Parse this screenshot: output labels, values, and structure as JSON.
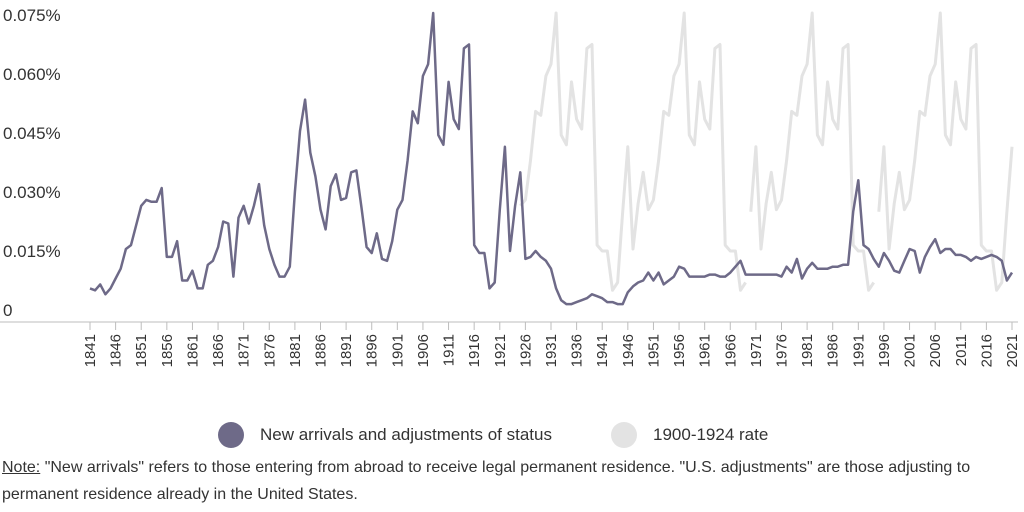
{
  "chart_data": {
    "type": "line",
    "ylim": [
      0,
      0.075
    ],
    "yticks": [
      0,
      0.015,
      0.03,
      0.045,
      0.06,
      0.075
    ],
    "ytick_labels": [
      "0",
      "0.015%",
      "0.030%",
      "0.045%",
      "0.060%",
      "0.075%"
    ],
    "xlim": [
      1841,
      2021
    ],
    "xticks": [
      1841,
      1846,
      1851,
      1856,
      1861,
      1866,
      1871,
      1876,
      1881,
      1886,
      1891,
      1896,
      1901,
      1906,
      1911,
      1916,
      1921,
      1926,
      1931,
      1936,
      1941,
      1946,
      1951,
      1956,
      1961,
      1966,
      1971,
      1976,
      1981,
      1986,
      1991,
      1996,
      2001,
      2006,
      2011,
      2016,
      2021
    ],
    "grid": false,
    "legend_position": "bottom",
    "series": [
      {
        "name": "1900-1924 rate",
        "color": "#e3e3e3",
        "segments": [
          [
            [
              1925,
              0.0265
            ],
            [
              1926,
              0.028
            ],
            [
              1927,
              0.038
            ],
            [
              1928,
              0.0505
            ],
            [
              1929,
              0.0495
            ],
            [
              1930,
              0.0595
            ],
            [
              1931,
              0.0625
            ],
            [
              1932,
              0.0755
            ],
            [
              1933,
              0.0445
            ],
            [
              1934,
              0.042
            ],
            [
              1935,
              0.058
            ],
            [
              1936,
              0.0485
            ],
            [
              1937,
              0.046
            ],
            [
              1938,
              0.0665
            ],
            [
              1939,
              0.0675
            ],
            [
              1940,
              0.0165
            ],
            [
              1941,
              0.015
            ],
            [
              1942,
              0.015
            ],
            [
              1943,
              0.005
            ],
            [
              1944,
              0.007
            ],
            [
              1945,
              0.025
            ],
            [
              1946,
              0.0415
            ],
            [
              1947,
              0.0155
            ],
            [
              1948,
              0.027
            ],
            [
              1949,
              0.035
            ],
            [
              1950,
              0.0255
            ],
            [
              1951,
              0.028
            ],
            [
              1952,
              0.038
            ],
            [
              1953,
              0.0505
            ],
            [
              1954,
              0.0495
            ],
            [
              1955,
              0.0595
            ],
            [
              1956,
              0.0625
            ],
            [
              1957,
              0.0755
            ],
            [
              1958,
              0.0445
            ],
            [
              1959,
              0.042
            ],
            [
              1960,
              0.058
            ],
            [
              1961,
              0.0485
            ],
            [
              1962,
              0.046
            ],
            [
              1963,
              0.0665
            ],
            [
              1964,
              0.0675
            ],
            [
              1965,
              0.0165
            ],
            [
              1966,
              0.015
            ],
            [
              1967,
              0.015
            ],
            [
              1968,
              0.005
            ],
            [
              1969,
              0.007
            ]
          ],
          [
            [
              1970,
              0.025
            ],
            [
              1971,
              0.0415
            ],
            [
              1972,
              0.0155
            ],
            [
              1973,
              0.027
            ],
            [
              1974,
              0.035
            ],
            [
              1975,
              0.0255
            ],
            [
              1976,
              0.028
            ],
            [
              1977,
              0.038
            ],
            [
              1978,
              0.0505
            ],
            [
              1979,
              0.0495
            ],
            [
              1980,
              0.0595
            ],
            [
              1981,
              0.0625
            ],
            [
              1982,
              0.0755
            ],
            [
              1983,
              0.0445
            ],
            [
              1984,
              0.042
            ],
            [
              1985,
              0.058
            ],
            [
              1986,
              0.0485
            ],
            [
              1987,
              0.046
            ],
            [
              1988,
              0.0665
            ],
            [
              1989,
              0.0675
            ],
            [
              1990,
              0.0165
            ],
            [
              1991,
              0.015
            ],
            [
              1992,
              0.015
            ],
            [
              1993,
              0.005
            ],
            [
              1994,
              0.007
            ]
          ],
          [
            [
              1995,
              0.025
            ],
            [
              1996,
              0.0415
            ],
            [
              1997,
              0.0155
            ],
            [
              1998,
              0.027
            ],
            [
              1999,
              0.035
            ],
            [
              2000,
              0.0255
            ],
            [
              2001,
              0.028
            ],
            [
              2002,
              0.038
            ],
            [
              2003,
              0.0505
            ],
            [
              2004,
              0.0495
            ],
            [
              2005,
              0.0595
            ],
            [
              2006,
              0.0625
            ],
            [
              2007,
              0.0755
            ],
            [
              2008,
              0.0445
            ],
            [
              2009,
              0.042
            ],
            [
              2010,
              0.058
            ],
            [
              2011,
              0.0485
            ],
            [
              2012,
              0.046
            ],
            [
              2013,
              0.0665
            ],
            [
              2014,
              0.0675
            ],
            [
              2015,
              0.0165
            ],
            [
              2016,
              0.015
            ],
            [
              2017,
              0.015
            ],
            [
              2018,
              0.005
            ],
            [
              2019,
              0.007
            ],
            [
              2020,
              0.025
            ],
            [
              2021,
              0.0415
            ]
          ]
        ]
      },
      {
        "name": "New arrivals and adjustments of status",
        "color": "#6e6a88",
        "points": [
          [
            1841,
            0.0055
          ],
          [
            1842,
            0.005
          ],
          [
            1843,
            0.0065
          ],
          [
            1844,
            0.004
          ],
          [
            1845,
            0.0055
          ],
          [
            1846,
            0.008
          ],
          [
            1847,
            0.0105
          ],
          [
            1848,
            0.0155
          ],
          [
            1849,
            0.0165
          ],
          [
            1850,
            0.0215
          ],
          [
            1851,
            0.0265
          ],
          [
            1852,
            0.028
          ],
          [
            1853,
            0.0275
          ],
          [
            1854,
            0.0275
          ],
          [
            1855,
            0.031
          ],
          [
            1856,
            0.0135
          ],
          [
            1857,
            0.0135
          ],
          [
            1858,
            0.0175
          ],
          [
            1859,
            0.0075
          ],
          [
            1860,
            0.0075
          ],
          [
            1861,
            0.01
          ],
          [
            1862,
            0.0055
          ],
          [
            1863,
            0.0055
          ],
          [
            1864,
            0.0115
          ],
          [
            1865,
            0.0125
          ],
          [
            1866,
            0.016
          ],
          [
            1867,
            0.0225
          ],
          [
            1868,
            0.022
          ],
          [
            1869,
            0.0085
          ],
          [
            1870,
            0.0235
          ],
          [
            1871,
            0.0265
          ],
          [
            1872,
            0.022
          ],
          [
            1873,
            0.0265
          ],
          [
            1874,
            0.032
          ],
          [
            1875,
            0.0215
          ],
          [
            1876,
            0.0155
          ],
          [
            1877,
            0.0115
          ],
          [
            1878,
            0.0085
          ],
          [
            1879,
            0.0085
          ],
          [
            1880,
            0.011
          ],
          [
            1881,
            0.03
          ],
          [
            1882,
            0.0455
          ],
          [
            1883,
            0.0535
          ],
          [
            1884,
            0.04
          ],
          [
            1885,
            0.034
          ],
          [
            1886,
            0.0255
          ],
          [
            1887,
            0.0205
          ],
          [
            1888,
            0.0315
          ],
          [
            1889,
            0.0345
          ],
          [
            1890,
            0.028
          ],
          [
            1891,
            0.0285
          ],
          [
            1892,
            0.035
          ],
          [
            1893,
            0.0355
          ],
          [
            1894,
            0.026
          ],
          [
            1895,
            0.016
          ],
          [
            1896,
            0.0145
          ],
          [
            1897,
            0.0195
          ],
          [
            1898,
            0.013
          ],
          [
            1899,
            0.0125
          ],
          [
            1900,
            0.0175
          ],
          [
            1901,
            0.0255
          ],
          [
            1902,
            0.028
          ],
          [
            1903,
            0.038
          ],
          [
            1904,
            0.0505
          ],
          [
            1905,
            0.0475
          ],
          [
            1906,
            0.0595
          ],
          [
            1907,
            0.0625
          ],
          [
            1908,
            0.0755
          ],
          [
            1909,
            0.0445
          ],
          [
            1910,
            0.042
          ],
          [
            1911,
            0.058
          ],
          [
            1912,
            0.0485
          ],
          [
            1913,
            0.046
          ],
          [
            1914,
            0.0665
          ],
          [
            1915,
            0.0675
          ],
          [
            1916,
            0.0165
          ],
          [
            1917,
            0.0145
          ],
          [
            1918,
            0.0145
          ],
          [
            1919,
            0.0055
          ],
          [
            1920,
            0.007
          ],
          [
            1921,
            0.0255
          ],
          [
            1922,
            0.0415
          ],
          [
            1923,
            0.015
          ],
          [
            1924,
            0.0265
          ],
          [
            1925,
            0.035
          ],
          [
            1926,
            0.013
          ],
          [
            1927,
            0.0135
          ],
          [
            1928,
            0.015
          ],
          [
            1929,
            0.0135
          ],
          [
            1930,
            0.0125
          ],
          [
            1931,
            0.0105
          ],
          [
            1932,
            0.0055
          ],
          [
            1933,
            0.0025
          ],
          [
            1934,
            0.0015
          ],
          [
            1935,
            0.0015
          ],
          [
            1936,
            0.002
          ],
          [
            1937,
            0.0025
          ],
          [
            1938,
            0.003
          ],
          [
            1939,
            0.004
          ],
          [
            1940,
            0.0035
          ],
          [
            1941,
            0.003
          ],
          [
            1942,
            0.002
          ],
          [
            1943,
            0.002
          ],
          [
            1944,
            0.0015
          ],
          [
            1945,
            0.0015
          ],
          [
            1946,
            0.0045
          ],
          [
            1947,
            0.006
          ],
          [
            1948,
            0.007
          ],
          [
            1949,
            0.0075
          ],
          [
            1950,
            0.0095
          ],
          [
            1951,
            0.0075
          ],
          [
            1952,
            0.0095
          ],
          [
            1953,
            0.0065
          ],
          [
            1954,
            0.0075
          ],
          [
            1955,
            0.0085
          ],
          [
            1956,
            0.011
          ],
          [
            1957,
            0.0105
          ],
          [
            1958,
            0.0085
          ],
          [
            1959,
            0.0085
          ],
          [
            1960,
            0.0085
          ],
          [
            1961,
            0.0085
          ],
          [
            1962,
            0.009
          ],
          [
            1963,
            0.009
          ],
          [
            1964,
            0.0085
          ],
          [
            1965,
            0.0085
          ],
          [
            1966,
            0.0095
          ],
          [
            1967,
            0.011
          ],
          [
            1968,
            0.0125
          ],
          [
            1969,
            0.009
          ],
          [
            1970,
            0.009
          ],
          [
            1971,
            0.009
          ],
          [
            1972,
            0.009
          ],
          [
            1973,
            0.009
          ],
          [
            1974,
            0.009
          ],
          [
            1975,
            0.009
          ],
          [
            1976,
            0.0085
          ],
          [
            1977,
            0.011
          ],
          [
            1978,
            0.0095
          ],
          [
            1979,
            0.013
          ],
          [
            1980,
            0.008
          ],
          [
            1981,
            0.0105
          ],
          [
            1982,
            0.012
          ],
          [
            1983,
            0.0105
          ],
          [
            1984,
            0.0105
          ],
          [
            1985,
            0.0105
          ],
          [
            1986,
            0.011
          ],
          [
            1987,
            0.011
          ],
          [
            1988,
            0.0115
          ],
          [
            1989,
            0.0115
          ],
          [
            1990,
            0.025
          ],
          [
            1991,
            0.033
          ],
          [
            1992,
            0.0165
          ],
          [
            1993,
            0.0155
          ],
          [
            1994,
            0.013
          ],
          [
            1995,
            0.011
          ],
          [
            1996,
            0.0145
          ],
          [
            1997,
            0.0125
          ],
          [
            1998,
            0.01
          ],
          [
            1999,
            0.0095
          ],
          [
            2000,
            0.0125
          ],
          [
            2001,
            0.0155
          ],
          [
            2002,
            0.015
          ],
          [
            2003,
            0.0095
          ],
          [
            2004,
            0.0135
          ],
          [
            2005,
            0.016
          ],
          [
            2006,
            0.018
          ],
          [
            2007,
            0.0145
          ],
          [
            2008,
            0.0155
          ],
          [
            2009,
            0.0155
          ],
          [
            2010,
            0.014
          ],
          [
            2011,
            0.014
          ],
          [
            2012,
            0.0135
          ],
          [
            2013,
            0.0125
          ],
          [
            2014,
            0.0135
          ],
          [
            2015,
            0.013
          ],
          [
            2016,
            0.0135
          ],
          [
            2017,
            0.014
          ],
          [
            2018,
            0.0135
          ],
          [
            2019,
            0.0125
          ],
          [
            2020,
            0.0075
          ],
          [
            2021,
            0.0095
          ]
        ]
      }
    ]
  },
  "legend": {
    "items": [
      {
        "label": "New arrivals and adjustments of status",
        "color": "#6e6a88"
      },
      {
        "label": "1900-1924 rate",
        "color": "#e3e3e3"
      }
    ]
  },
  "note": {
    "prefix": "Note:",
    "text": " \"New arrivals\" refers to those entering from abroad to receive legal permanent residence. \"U.S. adjustments\" are those adjusting to permanent residence already in the United States."
  }
}
